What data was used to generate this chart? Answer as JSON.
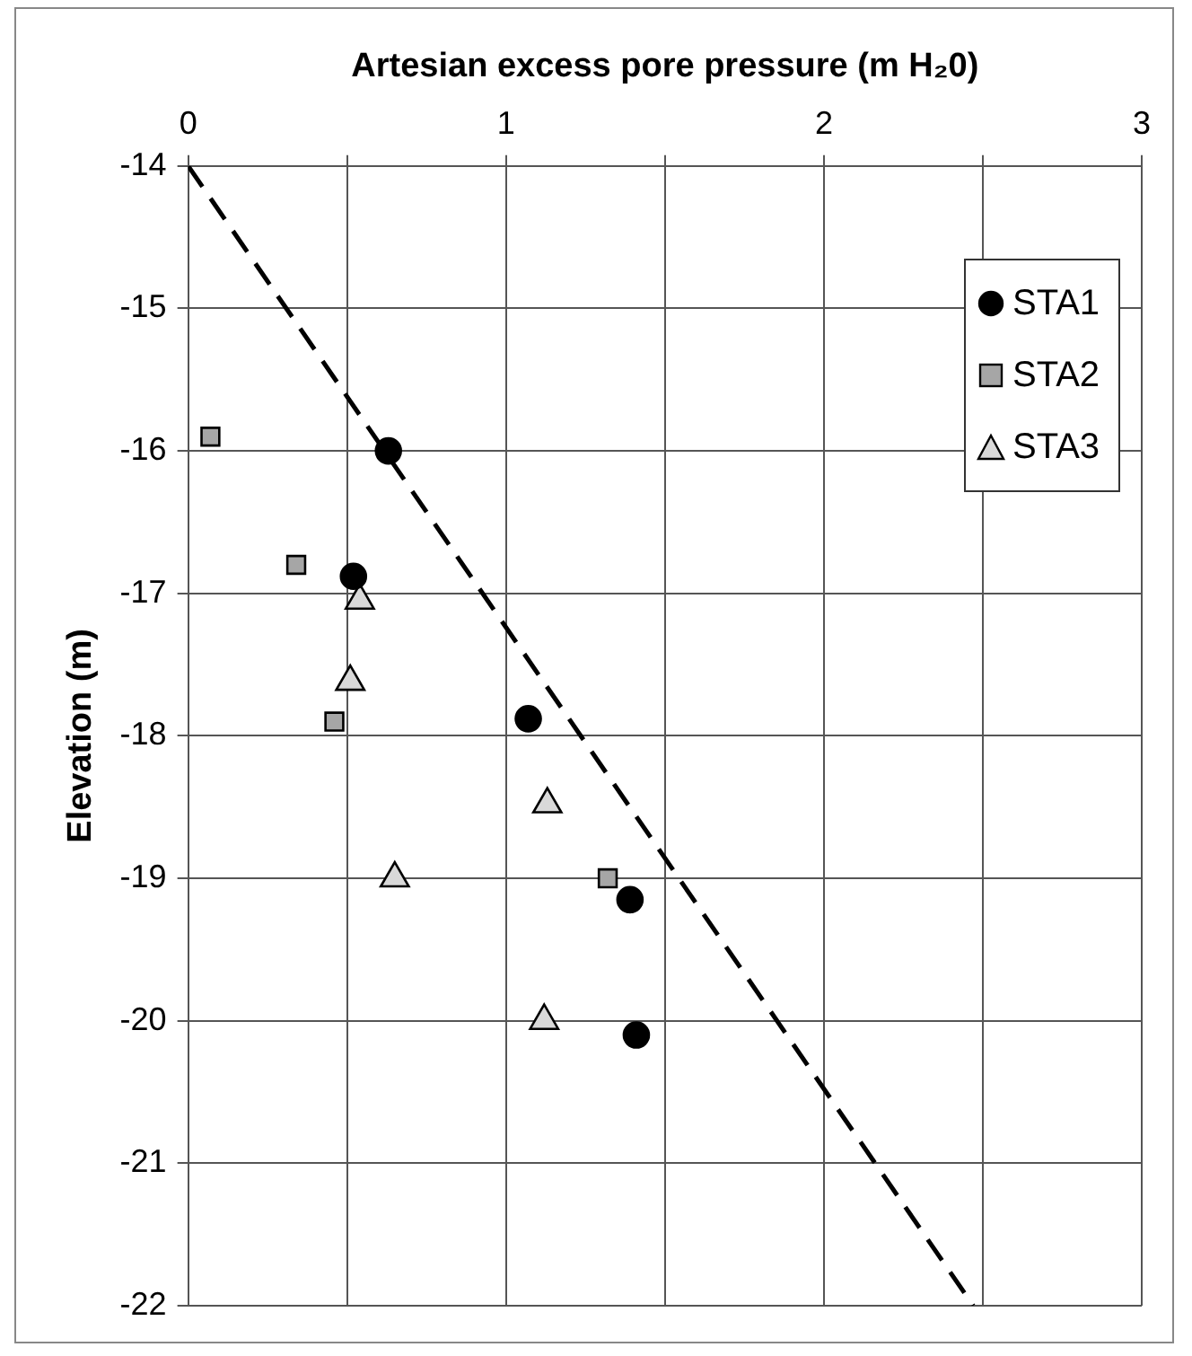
{
  "chart_data": {
    "type": "scatter",
    "xlabel": "Artesian excess pore pressure (m H₂0)",
    "ylabel": "Elevation (m)",
    "xlim": [
      0,
      3
    ],
    "xticks": [
      0,
      {
        "value": 0.5,
        "label": null
      },
      1,
      {
        "value": 1.5,
        "label": null
      },
      2,
      {
        "value": 2.5,
        "label": null
      },
      3
    ],
    "ylim": [
      -22,
      -14
    ],
    "yticks": [
      -14,
      -15,
      -16,
      -17,
      -18,
      -19,
      -20,
      -21,
      -22
    ],
    "grid": true,
    "legend": "top right",
    "series": [
      {
        "name": "STA1",
        "color": "#000000",
        "marker": "circle",
        "x": [
          0.63,
          0.52,
          1.07,
          1.39,
          1.41
        ],
        "values": [
          -16,
          -16.88,
          -17.88,
          -19.15,
          -20.1
        ]
      },
      {
        "name": "STA2",
        "color": "#a6a6a6",
        "marker": "square",
        "x": [
          0.07,
          0.34,
          0.46,
          1.32
        ],
        "values": [
          -15.9,
          -16.8,
          -17.9,
          -19.0
        ]
      },
      {
        "name": "STA3",
        "color": "#d9d9d9",
        "marker": "triangle",
        "x": [
          0.54,
          0.51,
          1.13,
          0.65,
          1.12
        ],
        "values": [
          -17.05,
          -17.62,
          -18.48,
          -19.0,
          -20.0
        ]
      },
      {
        "type": "line",
        "color": "#000000",
        "marker": "none",
        "line_style": "dashed",
        "x": [
          0,
          2.47
        ],
        "values": [
          -14,
          -22
        ]
      }
    ]
  }
}
